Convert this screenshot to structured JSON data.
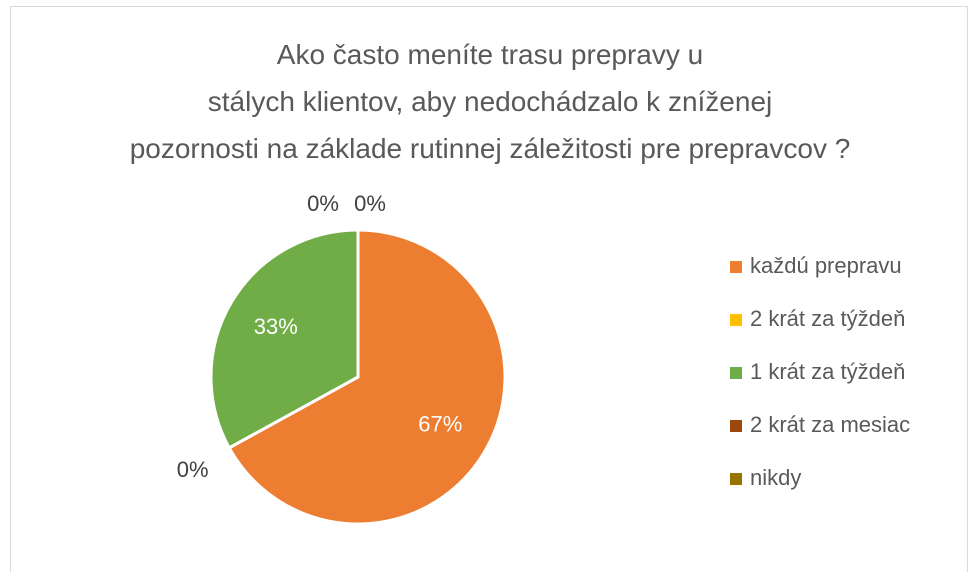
{
  "chart_data": {
    "type": "pie",
    "title": "Ako často meníte trasu prepravy u stálych klientov, aby nedochádzalo k zníženej pozornosti na základe rutinnej záležitosti pre prepravcov ?",
    "categories": [
      "každú prepravu",
      "2 krát za týždeň",
      "1 krát za týždeň",
      "2 krát za mesiac",
      "nikdy"
    ],
    "values": [
      67,
      0,
      33,
      0,
      0
    ],
    "value_labels": [
      "67%",
      "0%",
      "33%",
      "0%",
      "0%"
    ],
    "colors": [
      "#ed7d31",
      "#ffc000",
      "#70ad47",
      "#9e480e",
      "#997300"
    ],
    "legend": "right"
  }
}
